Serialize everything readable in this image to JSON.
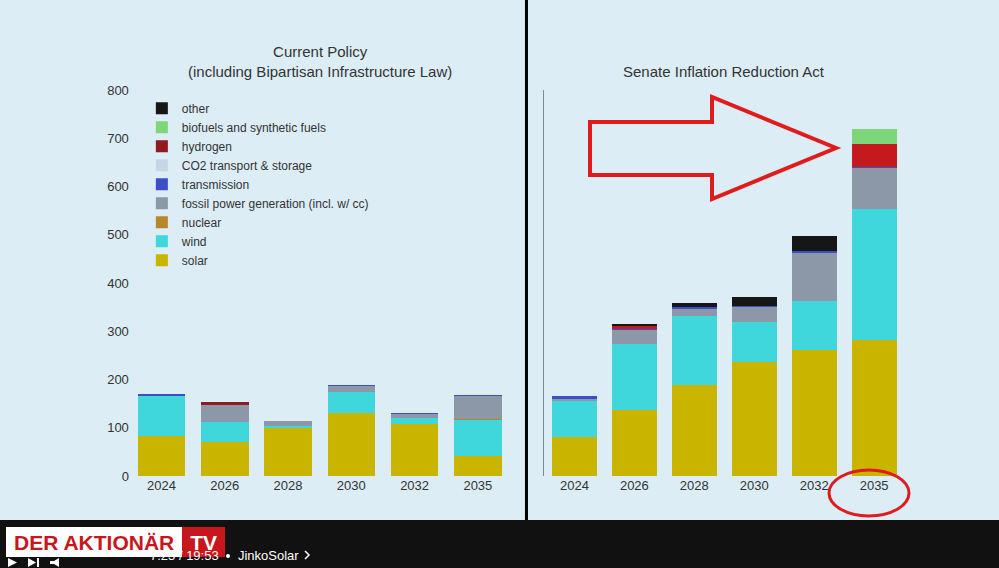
{
  "chart_data": [
    {
      "type": "bar",
      "title": "Current Policy\n(including Bipartisan Infrastructure Law)",
      "categories": [
        "2024",
        "2026",
        "2028",
        "2030",
        "2032",
        "2035"
      ],
      "stacked": true,
      "grid": false,
      "legend": "top-left",
      "ylim": [
        0,
        800
      ],
      "yticks": [
        0,
        100,
        200,
        300,
        400,
        500,
        600,
        700,
        800
      ],
      "series": [
        {
          "name": "solar",
          "color": "#c9b400",
          "values": [
            83,
            70,
            100,
            130,
            108,
            41
          ]
        },
        {
          "name": "wind",
          "color": "#3fd6dc",
          "values": [
            83,
            42,
            3,
            44,
            12,
            75
          ]
        },
        {
          "name": "nuclear",
          "color": "#b8862b",
          "values": [
            0,
            0,
            0,
            0,
            0,
            3
          ]
        },
        {
          "name": "fossil power generation (incl. w/ cc)",
          "color": "#8c98a8",
          "values": [
            0,
            35,
            10,
            12,
            8,
            47
          ]
        },
        {
          "name": "transmission",
          "color": "#3a4fc8",
          "values": [
            3,
            0,
            2,
            2,
            2,
            2
          ]
        },
        {
          "name": "CO2 transport & storage",
          "color": "#c6d6e6",
          "values": [
            0,
            0,
            0,
            0,
            0,
            0
          ]
        },
        {
          "name": "hydrogen",
          "color": "#8e1a22",
          "values": [
            0,
            6,
            0,
            0,
            0,
            0
          ]
        },
        {
          "name": "biofuels and synthetic fuels",
          "color": "#7ed67a",
          "values": [
            0,
            0,
            0,
            0,
            0,
            0
          ]
        },
        {
          "name": "other",
          "color": "#161616",
          "values": [
            0,
            0,
            0,
            0,
            0,
            0
          ]
        }
      ]
    },
    {
      "type": "bar",
      "title": "Senate Inflation Reduction Act",
      "categories": [
        "2024",
        "2026",
        "2028",
        "2030",
        "2032",
        "2035"
      ],
      "stacked": true,
      "grid": false,
      "tick_labels": "x",
      "ylim": [
        0,
        800
      ],
      "series": [
        {
          "name": "solar",
          "color": "#c9b400",
          "values": [
            81,
            137,
            189,
            236,
            261,
            282
          ]
        },
        {
          "name": "wind",
          "color": "#3fd6dc",
          "values": [
            75,
            137,
            143,
            83,
            102,
            272
          ]
        },
        {
          "name": "nuclear",
          "color": "#b8862b",
          "values": [
            0,
            0,
            0,
            0,
            0,
            0
          ]
        },
        {
          "name": "fossil power generation (incl. w/ cc)",
          "color": "#8c98a8",
          "values": [
            4,
            29,
            15,
            31,
            100,
            84
          ]
        },
        {
          "name": "transmission",
          "color": "#3a4fc8",
          "values": [
            5,
            2,
            3,
            3,
            4,
            3
          ]
        },
        {
          "name": "CO2 transport & storage",
          "color": "#c6d6e6",
          "values": [
            0,
            0,
            0,
            0,
            0,
            0
          ]
        },
        {
          "name": "hydrogen",
          "color": "#c41a1e",
          "values": [
            0,
            6,
            0,
            0,
            0,
            48
          ]
        },
        {
          "name": "biofuels and synthetic fuels",
          "color": "#7ed67a",
          "values": [
            0,
            0,
            0,
            0,
            0,
            30
          ]
        },
        {
          "name": "other",
          "color": "#161616",
          "values": [
            0,
            4,
            8,
            19,
            30,
            0
          ]
        }
      ]
    }
  ],
  "player": {
    "brand": "DER AKTIONÄR",
    "brand_suffix": "TV",
    "time": "7:23 / 19:53",
    "chapter": "JinkoSolar"
  }
}
